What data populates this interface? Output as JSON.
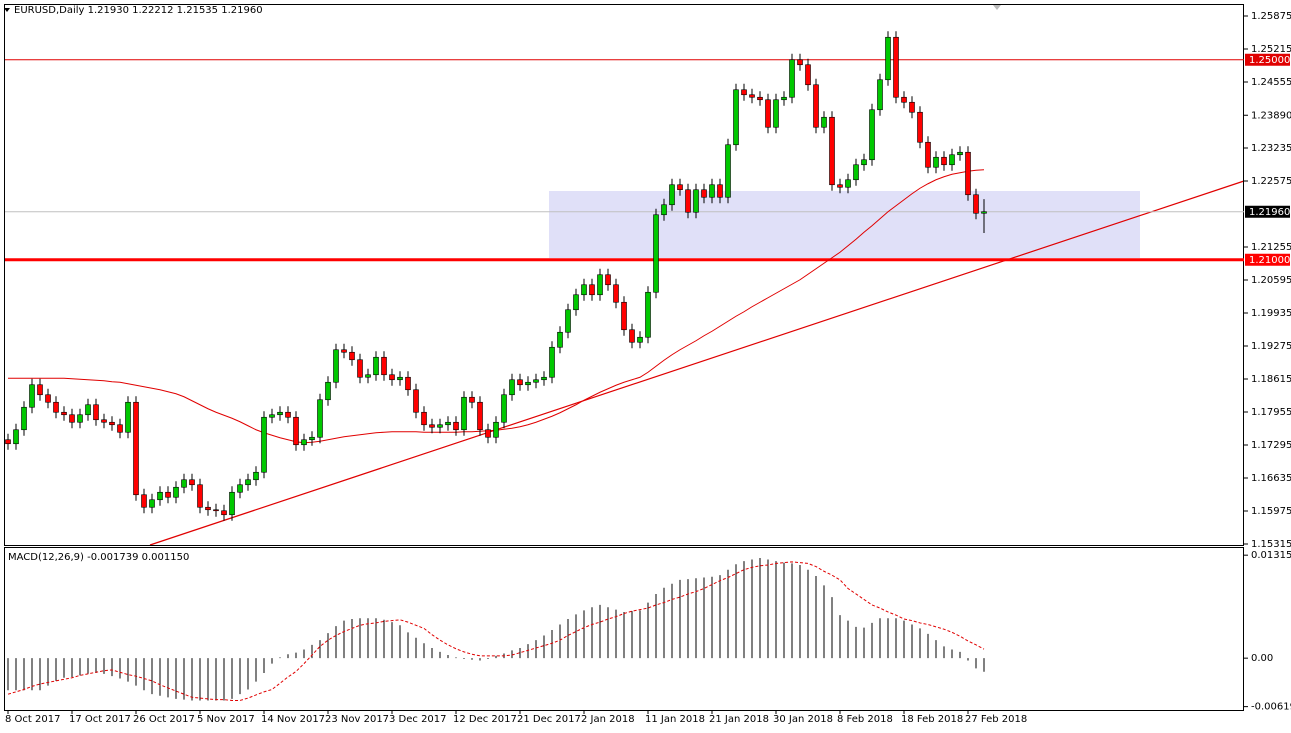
{
  "chart_data": [
    {
      "type": "candlestick",
      "title": "EURUSD,Daily  1.21930 1.22212 1.21535 1.21960",
      "categories": [
        "8 Oct 2017",
        null,
        null,
        null,
        null,
        null,
        null,
        null,
        "17 Oct 2017",
        null,
        null,
        null,
        null,
        null,
        null,
        null,
        "26 Oct 2017",
        null,
        null,
        null,
        null,
        null,
        null,
        null,
        "5 Nov 2017",
        null,
        null,
        null,
        null,
        null,
        null,
        null,
        "14 Nov 2017",
        null,
        null,
        null,
        null,
        null,
        null,
        null,
        "23 Nov 2017",
        null,
        null,
        null,
        null,
        null,
        null,
        null,
        "3 Dec 2017",
        null,
        null,
        null,
        null,
        null,
        null,
        null,
        "12 Dec 2017",
        null,
        null,
        null,
        null,
        null,
        null,
        null,
        "21 Dec 2017",
        null,
        null,
        null,
        null,
        null,
        null,
        null,
        "2 Jan 2018",
        null,
        null,
        null,
        null,
        null,
        null,
        null,
        "11 Jan 2018",
        null,
        null,
        null,
        null,
        null,
        null,
        null,
        "21 Jan 2018",
        null,
        null,
        null,
        null,
        null,
        null,
        null,
        "30 Jan 2018",
        null,
        null,
        null,
        null,
        null,
        null,
        null,
        "8 Feb 2018",
        null,
        null,
        null,
        null,
        null,
        null,
        null,
        "18 Feb 2018",
        null,
        null,
        null,
        null,
        null,
        null,
        null,
        "27 Feb 2018",
        null,
        null
      ],
      "open": [
        1.174,
        1.1732,
        1.176,
        1.1805,
        1.185,
        1.183,
        1.1815,
        1.1795,
        1.179,
        1.1775,
        1.179,
        1.181,
        1.178,
        1.1775,
        1.177,
        1.1755,
        1.1815,
        1.163,
        1.1605,
        1.162,
        1.1635,
        1.1625,
        1.1645,
        1.166,
        1.165,
        1.1605,
        1.16,
        1.1598,
        1.159,
        1.1635,
        1.165,
        1.166,
        1.1675,
        1.1785,
        1.179,
        1.1795,
        1.1785,
        1.173,
        1.174,
        1.1745,
        1.182,
        1.1855,
        1.192,
        1.1915,
        1.19,
        1.1865,
        1.187,
        1.1905,
        1.187,
        1.186,
        1.1865,
        1.184,
        1.1795,
        1.177,
        1.1765,
        1.177,
        1.1775,
        1.176,
        1.1825,
        1.1815,
        1.176,
        1.1745,
        1.1775,
        1.183,
        1.186,
        1.185,
        1.1855,
        1.186,
        1.1865,
        1.1925,
        1.1955,
        1.2,
        1.203,
        1.205,
        1.203,
        1.207,
        1.205,
        1.2015,
        1.196,
        1.1935,
        1.1945,
        1.2035,
        1.219,
        1.221,
        1.225,
        1.224,
        1.2195,
        1.224,
        1.2225,
        1.225,
        1.2225,
        1.233,
        1.244,
        1.243,
        1.2425,
        1.242,
        1.2365,
        1.242,
        1.2425,
        1.25,
        1.249,
        1.245,
        1.2365,
        1.2385,
        1.225,
        1.2245,
        1.226,
        1.229,
        1.23,
        1.24,
        1.246,
        1.2545,
        1.2425,
        1.2415,
        1.2395,
        1.2335,
        1.2285,
        1.2305,
        1.229,
        1.231,
        1.2315,
        1.223,
        1.2193
      ],
      "high": [
        1.1752,
        1.1772,
        1.1817,
        1.1862,
        1.1862,
        1.1842,
        1.1827,
        1.1807,
        1.1802,
        1.1802,
        1.1822,
        1.1822,
        1.1792,
        1.1787,
        1.1782,
        1.1827,
        1.1827,
        1.1642,
        1.1632,
        1.1647,
        1.1647,
        1.1657,
        1.1672,
        1.1672,
        1.1662,
        1.1617,
        1.1612,
        1.161,
        1.1647,
        1.1662,
        1.1672,
        1.1687,
        1.1797,
        1.1802,
        1.1807,
        1.1807,
        1.1797,
        1.1752,
        1.1757,
        1.1832,
        1.1867,
        1.1932,
        1.1932,
        1.1927,
        1.1912,
        1.1882,
        1.1917,
        1.1917,
        1.1882,
        1.1877,
        1.1877,
        1.1852,
        1.1807,
        1.1782,
        1.1782,
        1.1787,
        1.1787,
        1.1837,
        1.1837,
        1.1827,
        1.1772,
        1.1787,
        1.1842,
        1.1872,
        1.1872,
        1.1867,
        1.1872,
        1.1877,
        1.1937,
        1.1967,
        1.2012,
        1.2042,
        1.2062,
        1.2062,
        1.2082,
        1.2082,
        1.2062,
        1.2027,
        1.1972,
        1.1957,
        1.2047,
        1.2202,
        1.2222,
        1.2262,
        1.2262,
        1.2252,
        1.2252,
        1.2252,
        1.2262,
        1.2262,
        1.2342,
        1.2452,
        1.2452,
        1.2442,
        1.2437,
        1.2432,
        1.2432,
        1.2437,
        1.2512,
        1.2512,
        1.2502,
        1.2462,
        1.2397,
        1.2397,
        1.2262,
        1.2272,
        1.2302,
        1.2312,
        1.2412,
        1.2472,
        1.2557,
        1.2557,
        1.2437,
        1.2427,
        1.2407,
        1.2347,
        1.2317,
        1.2317,
        1.2322,
        1.2327,
        1.2327,
        1.2242,
        1.22212
      ],
      "low": [
        1.172,
        1.172,
        1.1748,
        1.1793,
        1.1818,
        1.1803,
        1.1783,
        1.1778,
        1.1763,
        1.1763,
        1.1778,
        1.1768,
        1.1763,
        1.1758,
        1.1743,
        1.1743,
        1.1618,
        1.1593,
        1.1593,
        1.1608,
        1.1613,
        1.1613,
        1.1633,
        1.1638,
        1.1593,
        1.1588,
        1.1586,
        1.1578,
        1.1578,
        1.1623,
        1.1638,
        1.1648,
        1.1663,
        1.1773,
        1.1778,
        1.1773,
        1.1718,
        1.1718,
        1.1728,
        1.1733,
        1.1808,
        1.1843,
        1.1903,
        1.1888,
        1.1853,
        1.1853,
        1.1858,
        1.1858,
        1.1848,
        1.1848,
        1.1828,
        1.1783,
        1.1758,
        1.1753,
        1.1753,
        1.1758,
        1.1748,
        1.1748,
        1.1803,
        1.1748,
        1.1733,
        1.1733,
        1.1763,
        1.1818,
        1.1838,
        1.1838,
        1.1843,
        1.1848,
        1.1853,
        1.1913,
        1.1943,
        1.1988,
        1.2018,
        1.2018,
        1.2018,
        1.2038,
        1.2003,
        1.1948,
        1.1923,
        1.1923,
        1.1933,
        1.2023,
        1.2178,
        1.2198,
        1.2228,
        1.2183,
        1.2183,
        1.2213,
        1.2213,
        1.2213,
        1.2213,
        1.2318,
        1.2418,
        1.2413,
        1.2408,
        1.2353,
        1.2353,
        1.2408,
        1.2413,
        1.2478,
        1.2438,
        1.2353,
        1.2353,
        1.2238,
        1.2233,
        1.2233,
        1.2248,
        1.2278,
        1.2288,
        1.2388,
        1.2448,
        1.2413,
        1.2403,
        1.2383,
        1.2323,
        1.2273,
        1.2273,
        1.2278,
        1.2278,
        1.2298,
        1.2218,
        1.2181,
        1.21535
      ],
      "close": [
        1.1732,
        1.176,
        1.1805,
        1.185,
        1.183,
        1.1815,
        1.1795,
        1.179,
        1.1775,
        1.179,
        1.181,
        1.178,
        1.1775,
        1.177,
        1.1755,
        1.1815,
        1.163,
        1.1605,
        1.162,
        1.1635,
        1.1625,
        1.1645,
        1.166,
        1.165,
        1.1605,
        1.16,
        1.1598,
        1.159,
        1.1635,
        1.165,
        1.166,
        1.1675,
        1.1785,
        1.179,
        1.1795,
        1.1785,
        1.173,
        1.174,
        1.1745,
        1.182,
        1.1855,
        1.192,
        1.1915,
        1.19,
        1.1865,
        1.187,
        1.1905,
        1.187,
        1.186,
        1.1865,
        1.184,
        1.1795,
        1.177,
        1.1765,
        1.177,
        1.1775,
        1.176,
        1.1825,
        1.1815,
        1.176,
        1.1745,
        1.1775,
        1.183,
        1.186,
        1.185,
        1.1855,
        1.186,
        1.1865,
        1.1925,
        1.1955,
        1.2,
        1.203,
        1.205,
        1.203,
        1.207,
        1.205,
        1.2015,
        1.196,
        1.1935,
        1.1945,
        1.2035,
        1.219,
        1.221,
        1.225,
        1.224,
        1.2195,
        1.224,
        1.2225,
        1.225,
        1.2225,
        1.233,
        1.244,
        1.243,
        1.2425,
        1.242,
        1.2365,
        1.242,
        1.2425,
        1.25,
        1.249,
        1.245,
        1.2365,
        1.2385,
        1.225,
        1.2245,
        1.226,
        1.229,
        1.23,
        1.24,
        1.246,
        1.2545,
        1.2425,
        1.2415,
        1.2395,
        1.2335,
        1.2285,
        1.2305,
        1.229,
        1.231,
        1.2315,
        1.223,
        1.2193,
        1.2196
      ],
      "up_color": "#00c800",
      "down_color": "#ff0000",
      "ma": {
        "color": "#e00000",
        "values": [
          1.1863,
          1.1863,
          1.1863,
          1.1863,
          1.1863,
          1.1863,
          1.1863,
          1.1863,
          1.1862,
          1.1861,
          1.186,
          1.1859,
          1.1858,
          1.1856,
          1.1855,
          1.1852,
          1.1849,
          1.1846,
          1.1843,
          1.184,
          1.1836,
          1.1832,
          1.1826,
          1.1818,
          1.181,
          1.1802,
          1.1795,
          1.1789,
          1.1783,
          1.1776,
          1.1768,
          1.176,
          1.1754,
          1.1749,
          1.1744,
          1.174,
          1.1736,
          1.1734,
          1.1735,
          1.1737,
          1.174,
          1.1743,
          1.1746,
          1.1748,
          1.175,
          1.1752,
          1.1754,
          1.1755,
          1.1756,
          1.1756,
          1.1756,
          1.1756,
          1.1755,
          1.1755,
          1.1755,
          1.1755,
          1.1755,
          1.1756,
          1.1756,
          1.1757,
          1.1758,
          1.1759,
          1.1761,
          1.1763,
          1.1766,
          1.177,
          1.1775,
          1.1781,
          1.1787,
          1.1794,
          1.1802,
          1.181,
          1.1819,
          1.1827,
          1.1835,
          1.1842,
          1.1849,
          1.1855,
          1.186,
          1.1865,
          1.1875,
          1.1887,
          1.1899,
          1.191,
          1.192,
          1.1929,
          1.1938,
          1.1948,
          1.1957,
          1.1967,
          1.1977,
          1.1987,
          1.1996,
          1.2006,
          1.2015,
          1.2024,
          1.2033,
          1.2042,
          1.2051,
          1.206,
          1.2071,
          1.2082,
          1.2093,
          1.2104,
          1.2115,
          1.2128,
          1.2141,
          1.2155,
          1.2168,
          1.2182,
          1.2196,
          1.2208,
          1.222,
          1.2232,
          1.2243,
          1.2252,
          1.226,
          1.2266,
          1.2271,
          1.2274,
          1.2277,
          1.2279,
          1.228
        ]
      },
      "levels": [
        {
          "value": 1.25,
          "label": "1.25000",
          "color": "#e00000",
          "line_width": 1
        },
        {
          "value": 1.21,
          "label": "1.21000",
          "color": "#ff0000",
          "line_width": 3
        }
      ],
      "last_price": {
        "value": 1.2196,
        "label": "1.21960"
      },
      "ylim": [
        1.15295,
        1.26095
      ],
      "yticks": [
        1.25875,
        1.25215,
        1.24555,
        {
          "value": 1.2389,
          "label": "1.23890"
        },
        1.23235,
        1.22575,
        1.21255,
        1.20595,
        1.19935,
        1.19275,
        1.18615,
        1.17955,
        1.17295,
        1.16635,
        1.15975,
        1.15315
      ]
    },
    {
      "type": "macd",
      "label": "MACD(12,26,9) -0.001739 0.001150",
      "histogram": [
        -0.0041,
        -0.0041,
        -0.0041,
        -0.0041,
        -0.0041,
        -0.0035,
        -0.0029,
        -0.0025,
        -0.0024,
        -0.0022,
        -0.002,
        -0.0019,
        -0.002,
        -0.0023,
        -0.0026,
        -0.003,
        -0.0035,
        -0.0041,
        -0.0046,
        -0.0048,
        -0.005,
        -0.0052,
        -0.0053,
        -0.0054,
        -0.0054,
        -0.0054,
        -0.0054,
        -0.0054,
        -0.0052,
        -0.0046,
        -0.004,
        -0.003,
        -0.0019,
        -0.0007,
        0.0001,
        0.0005,
        0.0007,
        0.0011,
        0.0017,
        0.0023,
        0.0032,
        0.0041,
        0.0048,
        0.005,
        0.0051,
        0.0051,
        0.0051,
        0.0049,
        0.0046,
        0.0042,
        0.0033,
        0.0026,
        0.0019,
        0.0013,
        0.0008,
        0.0004,
        0.0001,
        -0.0001,
        -0.0002,
        -0.0003,
        -0.0001,
        0.0003,
        0.0006,
        0.001,
        0.0013,
        0.0018,
        0.0023,
        0.0029,
        0.0036,
        0.0043,
        0.005,
        0.0056,
        0.0061,
        0.0065,
        0.0068,
        0.0065,
        0.0062,
        0.0059,
        0.006,
        0.0061,
        0.0071,
        0.0082,
        0.009,
        0.0095,
        0.01,
        0.0101,
        0.0102,
        0.0103,
        0.0104,
        0.0106,
        0.0113,
        0.012,
        0.0124,
        0.0126,
        0.0128,
        0.0126,
        0.0124,
        0.0122,
        0.0121,
        0.0119,
        0.0113,
        0.0105,
        0.0093,
        0.0078,
        0.0055,
        0.0048,
        0.004,
        0.0039,
        0.0045,
        0.0051,
        0.0051,
        0.0051,
        0.0048,
        0.0043,
        0.0038,
        0.0031,
        0.0023,
        0.0015,
        0.0011,
        0.0008,
        -0.0003,
        -0.0013,
        -0.001739
      ],
      "signal": [
        -0.0046,
        -0.0043,
        -0.004,
        -0.0036,
        -0.0033,
        -0.0031,
        -0.0029,
        -0.0027,
        -0.0025,
        -0.0022,
        -0.002,
        -0.0018,
        -0.0016,
        -0.0015,
        -0.0018,
        -0.0021,
        -0.0023,
        -0.0026,
        -0.0029,
        -0.0034,
        -0.0038,
        -0.0042,
        -0.0046,
        -0.005,
        -0.0051,
        -0.0052,
        -0.0053,
        -0.0053,
        -0.0054,
        -0.0054,
        -0.0051,
        -0.0047,
        -0.0043,
        -0.004,
        -0.0032,
        -0.0024,
        -0.0017,
        -0.0007,
        0.0004,
        0.0015,
        0.0023,
        0.0029,
        0.0034,
        0.0038,
        0.0042,
        0.0044,
        0.0045,
        0.0047,
        0.0048,
        0.0049,
        0.0046,
        0.0042,
        0.0038,
        0.003,
        0.0023,
        0.0017,
        0.0012,
        0.0008,
        0.0005,
        0.0003,
        0.0003,
        0.0003,
        0.0003,
        0.0004,
        0.0007,
        0.001,
        0.0013,
        0.0016,
        0.0019,
        0.0023,
        0.0029,
        0.0034,
        0.0039,
        0.0043,
        0.0046,
        0.005,
        0.0053,
        0.0057,
        0.006,
        0.0062,
        0.0064,
        0.0068,
        0.0071,
        0.0075,
        0.0078,
        0.0082,
        0.0085,
        0.0089,
        0.0094,
        0.0099,
        0.0103,
        0.0108,
        0.0113,
        0.0116,
        0.0118,
        0.0119,
        0.0121,
        0.0122,
        0.0123,
        0.0122,
        0.0121,
        0.0117,
        0.0111,
        0.0106,
        0.01,
        0.0089,
        0.0082,
        0.0075,
        0.0068,
        0.0064,
        0.0059,
        0.0055,
        0.005,
        0.0048,
        0.0045,
        0.0043,
        0.004,
        0.0037,
        0.0033,
        0.0028,
        0.0022,
        0.0017,
        0.00115
      ],
      "histogram_color": "#000000",
      "signal_color": "#e00000",
      "ylim": [
        -0.00662,
        0.01407
      ],
      "yticks": [
        0.013154,
        {
          "value": 0,
          "label": "0.00"
        },
        -0.00619
      ]
    }
  ]
}
